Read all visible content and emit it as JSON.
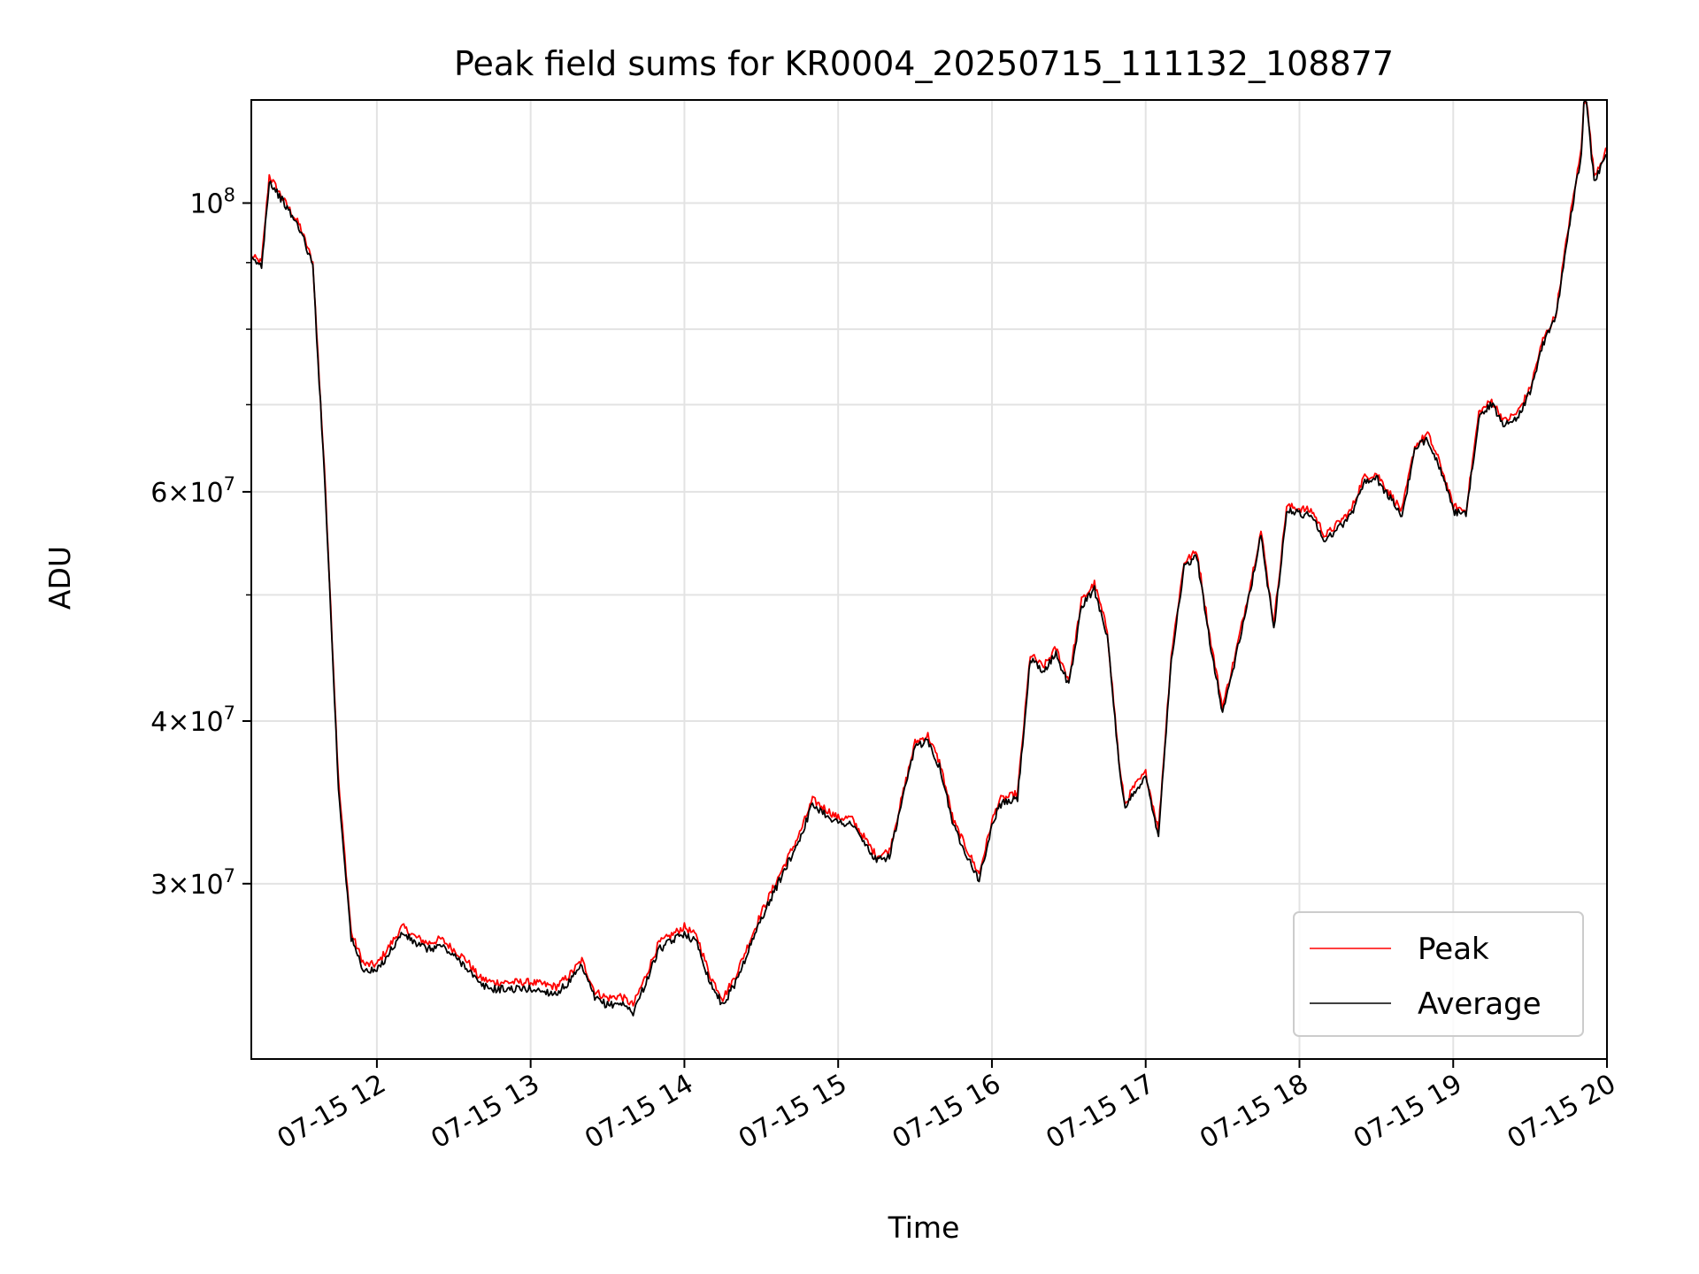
{
  "chart_data": {
    "type": "line",
    "title": "Peak field sums for KR0004_20250715_111132_108877",
    "xlabel": "Time",
    "ylabel": "ADU",
    "y_scale": "log",
    "ylim": [
      22000000,
      120000000
    ],
    "xlim": [
      "07-15 11:11",
      "07-15 20:00"
    ],
    "grid": true,
    "legend_position": "lower-right",
    "x_ticks": [
      "07-15 12",
      "07-15 13",
      "07-15 14",
      "07-15 15",
      "07-15 16",
      "07-15 17",
      "07-15 18",
      "07-15 19",
      "07-15 20"
    ],
    "y_ticks": [
      {
        "value": 30000000,
        "mantissa": "3",
        "exp": "7"
      },
      {
        "value": 40000000,
        "mantissa": "4",
        "exp": "7"
      },
      {
        "value": 60000000,
        "mantissa": "6",
        "exp": "7"
      },
      {
        "value": 100000000,
        "mantissa": "",
        "exp": "8"
      }
    ],
    "y_minor_ticks": [
      50000000,
      70000000,
      80000000,
      90000000
    ],
    "x": [
      "07-15 11:11",
      "07-15 11:15",
      "07-15 11:18",
      "07-15 11:23",
      "07-15 11:30",
      "07-15 11:35",
      "07-15 11:40",
      "07-15 11:45",
      "07-15 11:50",
      "07-15 11:55",
      "07-15 12:00",
      "07-15 12:10",
      "07-15 12:15",
      "07-15 12:20",
      "07-15 12:25",
      "07-15 12:35",
      "07-15 12:40",
      "07-15 12:45",
      "07-15 12:50",
      "07-15 13:00",
      "07-15 13:10",
      "07-15 13:15",
      "07-15 13:20",
      "07-15 13:25",
      "07-15 13:30",
      "07-15 13:35",
      "07-15 13:40",
      "07-15 13:45",
      "07-15 13:50",
      "07-15 14:00",
      "07-15 14:05",
      "07-15 14:10",
      "07-15 14:15",
      "07-15 14:20",
      "07-15 14:30",
      "07-15 14:45",
      "07-15 14:50",
      "07-15 15:00",
      "07-15 15:05",
      "07-15 15:15",
      "07-15 15:20",
      "07-15 15:25",
      "07-15 15:30",
      "07-15 15:35",
      "07-15 15:40",
      "07-15 15:45",
      "07-15 15:55",
      "07-15 16:00",
      "07-15 16:03",
      "07-15 16:07",
      "07-15 16:10",
      "07-15 16:15",
      "07-15 16:20",
      "07-15 16:25",
      "07-15 16:30",
      "07-15 16:35",
      "07-15 16:40",
      "07-15 16:45",
      "07-15 16:50",
      "07-15 16:52",
      "07-15 16:55",
      "07-15 17:00",
      "07-15 17:05",
      "07-15 17:10",
      "07-15 17:15",
      "07-15 17:20",
      "07-15 17:25",
      "07-15 17:30",
      "07-15 17:35",
      "07-15 17:40",
      "07-15 17:45",
      "07-15 17:50",
      "07-15 17:55",
      "07-15 18:05",
      "07-15 18:10",
      "07-15 18:20",
      "07-15 18:25",
      "07-15 18:30",
      "07-15 18:40",
      "07-15 18:45",
      "07-15 18:50",
      "07-15 18:55",
      "07-15 19:00",
      "07-15 19:05",
      "07-15 19:10",
      "07-15 19:15",
      "07-15 19:20",
      "07-15 19:25",
      "07-15 19:30",
      "07-15 19:35",
      "07-15 19:40",
      "07-15 19:45",
      "07-15 19:50",
      "07-15 19:51",
      "07-15 19:52",
      "07-15 19:55",
      "07-15 20:00"
    ],
    "series": [
      {
        "name": "Peak",
        "color": "#ff0000",
        "values": [
          91000000,
          90000000,
          105000000,
          101000000,
          96000000,
          90000000,
          60000000,
          36000000,
          27500000,
          26000000,
          26000000,
          27800000,
          27300000,
          27000000,
          27200000,
          26200000,
          25400000,
          25200000,
          25200000,
          25200000,
          25000000,
          25500000,
          26200000,
          24800000,
          24500000,
          24600000,
          24200000,
          25500000,
          27000000,
          27800000,
          27300000,
          25500000,
          24500000,
          25500000,
          28500000,
          32800000,
          34800000,
          33700000,
          33700000,
          31500000,
          31800000,
          35000000,
          38500000,
          39000000,
          37000000,
          33500000,
          30500000,
          33500000,
          34800000,
          35000000,
          35200000,
          45000000,
          44000000,
          45500000,
          43000000,
          49500000,
          51000000,
          47000000,
          36500000,
          34500000,
          35500000,
          36500000,
          33000000,
          45000000,
          53000000,
          54000000,
          46500000,
          41000000,
          45000000,
          50000000,
          56000000,
          47500000,
          58500000,
          58000000,
          55500000,
          58000000,
          61500000,
          62000000,
          58000000,
          65000000,
          66500000,
          63000000,
          58500000,
          58000000,
          69000000,
          70500000,
          68000000,
          69000000,
          72000000,
          78500000,
          82000000,
          96000000,
          110000000,
          120000000,
          120000000,
          105000000,
          110000000
        ]
      },
      {
        "name": "Average",
        "color": "#000000",
        "values": [
          90500000,
          89500000,
          104000000,
          100500000,
          95500000,
          89500000,
          59500000,
          35500000,
          27200000,
          25700000,
          25700000,
          27500000,
          27000000,
          26700000,
          26900000,
          25900000,
          25100000,
          24900000,
          24900000,
          24900000,
          24700000,
          25200000,
          25900000,
          24500000,
          24200000,
          24300000,
          23900000,
          25200000,
          26700000,
          27500000,
          27000000,
          25200000,
          24200000,
          25200000,
          28200000,
          32500000,
          34500000,
          33400000,
          33400000,
          31200000,
          31500000,
          34700000,
          38200000,
          38700000,
          36700000,
          33200000,
          30200000,
          33200000,
          34500000,
          34700000,
          34900000,
          44600000,
          43600000,
          45100000,
          42600000,
          49000000,
          50500000,
          46600000,
          36200000,
          34200000,
          35200000,
          36200000,
          32700000,
          44600000,
          52500000,
          53500000,
          46100000,
          40600000,
          44600000,
          49500000,
          55500000,
          47100000,
          58000000,
          57500000,
          55000000,
          57500000,
          61000000,
          61500000,
          57500000,
          64500000,
          66000000,
          62500000,
          58000000,
          57500000,
          68500000,
          70000000,
          67500000,
          68500000,
          71500000,
          78000000,
          81500000,
          95500000,
          109000000,
          119000000,
          119000000,
          104000000,
          109000000
        ]
      }
    ]
  }
}
